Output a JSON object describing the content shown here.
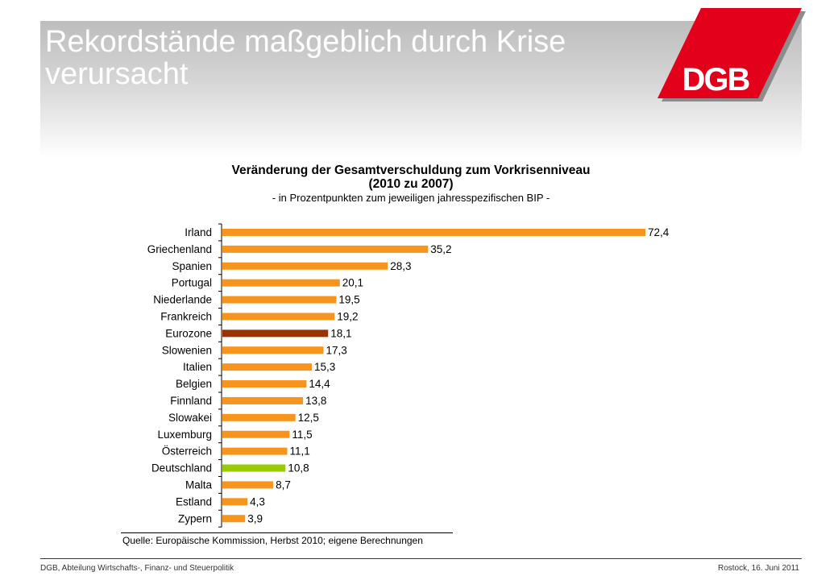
{
  "slide": {
    "title": "Rekordstände maßgeblich durch Krise verursacht",
    "logo_text": "DGB",
    "footer_left": "DGB, Abteilung Wirtschafts-, Finanz- und Steuerpolitik",
    "footer_right": "Rostock, 16. Juni 2011",
    "colors": {
      "logo_red": "#e3001b",
      "footer_rule": "#c00000"
    }
  },
  "chart_data": {
    "type": "bar",
    "orientation": "horizontal",
    "title": "Veränderung der Gesamtverschuldung zum Vorkrisenniveau",
    "subtitle": "(2010 zu 2007)",
    "subtitle2": "- in Prozentpunkten zum jeweiligen jahresspezifischen BIP -",
    "source": "Quelle: Europäische Kommission, Herbst 2010; eigene Berechnungen",
    "categories": [
      "Irland",
      "Griechenland",
      "Spanien",
      "Portugal",
      "Niederlande",
      "Frankreich",
      "Eurozone",
      "Slowenien",
      "Italien",
      "Belgien",
      "Finnland",
      "Slowakei",
      "Luxemburg",
      "Österreich",
      "Deutschland",
      "Malta",
      "Estland",
      "Zypern"
    ],
    "values": [
      72.4,
      35.2,
      28.3,
      20.1,
      19.5,
      19.2,
      18.1,
      17.3,
      15.3,
      14.4,
      13.8,
      12.5,
      11.5,
      11.1,
      10.8,
      8.7,
      4.3,
      3.9
    ],
    "value_labels": [
      "72,4",
      "35,2",
      "28,3",
      "20,1",
      "19,5",
      "19,2",
      "18,1",
      "17,3",
      "15,3",
      "14,4",
      "13,8",
      "12,5",
      "11,5",
      "11,1",
      "10,8",
      "8,7",
      "4,3",
      "3,9"
    ],
    "xlim": [
      0,
      72.4
    ],
    "grid": false,
    "legend": "none",
    "colors": {
      "default": "#f7941d",
      "highlight": {
        "Eurozone": "#993300",
        "Deutschland": "#99cc00"
      }
    }
  }
}
